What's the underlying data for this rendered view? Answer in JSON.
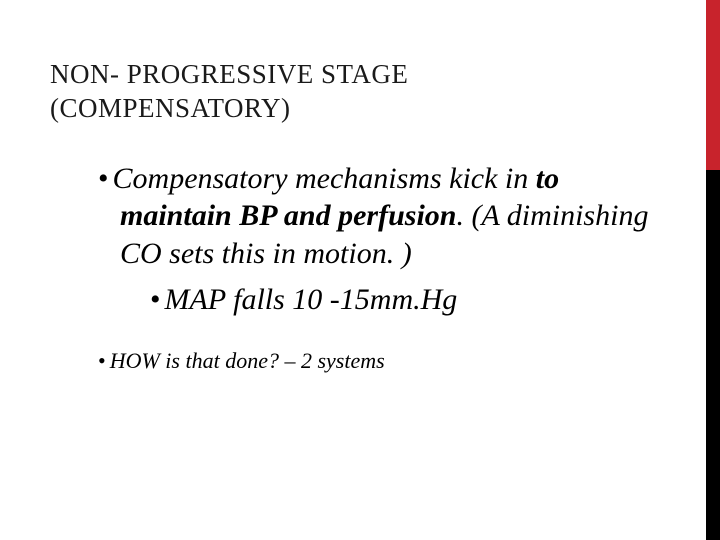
{
  "accent": {
    "red": "#c8232c",
    "black": "#000000"
  },
  "title": {
    "line1": "NON- PROGRESSIVE STAGE",
    "line2": "(COMPENSATORY)"
  },
  "bullets": {
    "lvl1_pre": "Compensatory mechanisms kick in ",
    "lvl1_bold": "to maintain BP and perfusion",
    "lvl1_post": ".  (A diminishing CO sets this in motion. )",
    "lvl2": "MAP falls 10 -15mm.Hg",
    "small": "HOW is that done? – 2 systems"
  }
}
